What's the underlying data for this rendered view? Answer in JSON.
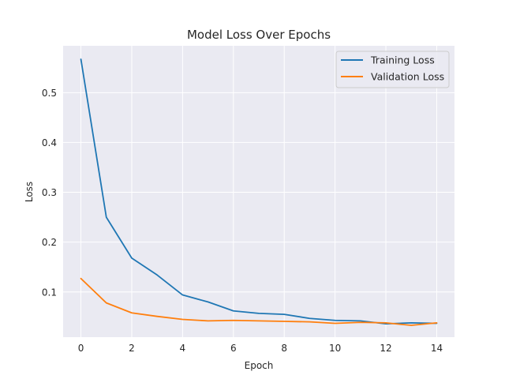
{
  "chart_data": {
    "type": "line",
    "title": "Model Loss Over Epochs",
    "xlabel": "Epoch",
    "ylabel": "Loss",
    "xlim": [
      -0.7,
      14.7
    ],
    "ylim": [
      0.0093,
      0.594
    ],
    "xticks": [
      0,
      2,
      4,
      6,
      8,
      10,
      12,
      14
    ],
    "yticks": [
      0.1,
      0.2,
      0.3,
      0.4,
      0.5
    ],
    "grid": true,
    "legend": "top-right",
    "x": [
      0,
      1,
      2,
      3,
      4,
      5,
      6,
      7,
      8,
      9,
      10,
      11,
      12,
      13,
      14
    ],
    "series": [
      {
        "name": "Training Loss",
        "color": "#1f77b4",
        "values": [
          0.567,
          0.25,
          0.168,
          0.134,
          0.094,
          0.08,
          0.062,
          0.057,
          0.055,
          0.047,
          0.043,
          0.042,
          0.036,
          0.038,
          0.037
        ]
      },
      {
        "name": "Validation Loss",
        "color": "#ff7f0e",
        "values": [
          0.127,
          0.078,
          0.058,
          0.051,
          0.045,
          0.042,
          0.043,
          0.042,
          0.041,
          0.04,
          0.037,
          0.039,
          0.038,
          0.033,
          0.038
        ]
      }
    ]
  }
}
